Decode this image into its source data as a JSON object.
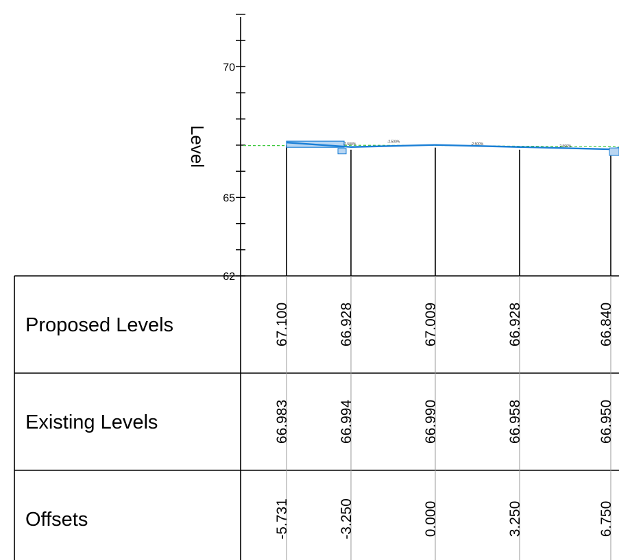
{
  "chart_data": {
    "type": "line",
    "title": "",
    "ylabel": "Level",
    "ylim": [
      62,
      73
    ],
    "yticks": [
      {
        "value": 70,
        "label": "70"
      },
      {
        "value": 65,
        "label": "65"
      },
      {
        "value": 62,
        "label": "62"
      }
    ],
    "x": [
      -5.731,
      -3.25,
      0.0,
      3.25,
      6.75
    ],
    "series": [
      {
        "key": "proposed",
        "values": [
          67.1,
          66.928,
          67.009,
          66.928,
          66.84
        ]
      },
      {
        "key": "existing",
        "values": [
          66.983,
          66.994,
          66.99,
          66.958,
          66.95
        ]
      }
    ],
    "grade_labels": [
      "-2.500%",
      "-2.500%",
      "-2.500%",
      "-2.500%"
    ],
    "colors": {
      "proposed": "#1a7fd6",
      "existing": "#3ec83e",
      "axis": "#000000",
      "gridline": "#999999"
    }
  },
  "table": {
    "rows": [
      {
        "label": "Proposed Levels",
        "values": [
          "67.100",
          "66.928",
          "67.009",
          "66.928",
          "66.840"
        ]
      },
      {
        "label": "Existing Levels",
        "values": [
          "66.983",
          "66.994",
          "66.990",
          "66.958",
          "66.950"
        ]
      },
      {
        "label": "Offsets",
        "values": [
          "-5.731",
          "-3.250",
          "0.000",
          "3.250",
          "6.750"
        ]
      }
    ]
  }
}
